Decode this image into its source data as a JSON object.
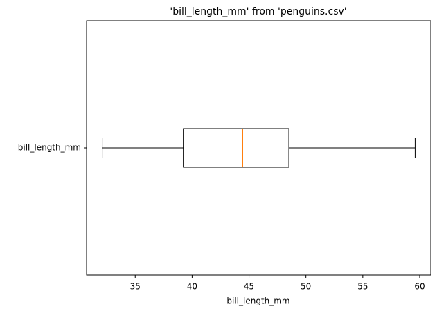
{
  "chart_data": {
    "type": "box",
    "title": "'bill_length_mm' from 'penguins.csv'",
    "xlabel": "bill_length_mm",
    "categories": [
      "bill_length_mm"
    ],
    "boxes": [
      {
        "whislo": 32.1,
        "q1": 39.225,
        "med": 44.45,
        "q3": 48.5,
        "whishi": 59.6
      }
    ],
    "color": "#000000",
    "median_color": "#ff7f0e",
    "xlim": [
      30.725,
      60.975
    ],
    "xticks": [
      35,
      40,
      45,
      50,
      55,
      60
    ],
    "grid": false
  }
}
